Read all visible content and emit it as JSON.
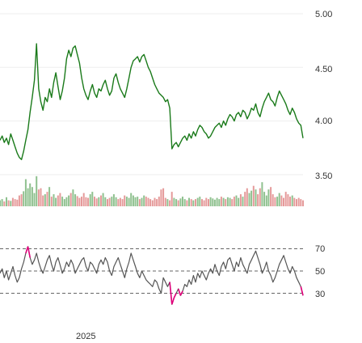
{
  "colors": {
    "price_line": "#1a7a1a",
    "volume_up": "#8fc18f",
    "volume_down": "#e59a9a",
    "rsi_line": "#555555",
    "rsi_overbought": "#e0007a",
    "rsi_oversold": "#e0007a",
    "grid": "#eeeeee",
    "guide": "#666666"
  },
  "chart_data": [
    {
      "type": "line",
      "panel": "price",
      "y_ticks": [
        "5.00",
        "4.50",
        "4.00",
        "3.50"
      ],
      "ylim": [
        3.25,
        5.0
      ],
      "x_tick_labels": [
        "2025"
      ],
      "series": [
        {
          "values": [
            3.82,
            3.86,
            3.8,
            3.84,
            3.78,
            3.88,
            3.82,
            3.76,
            3.7,
            3.66,
            3.64,
            3.72,
            3.82,
            3.92,
            4.08,
            4.22,
            4.38,
            4.72,
            4.3,
            4.18,
            4.1,
            4.22,
            4.18,
            4.3,
            4.22,
            4.36,
            4.45,
            4.32,
            4.2,
            4.28,
            4.4,
            4.58,
            4.66,
            4.6,
            4.68,
            4.7,
            4.62,
            4.54,
            4.4,
            4.3,
            4.24,
            4.2,
            4.28,
            4.34,
            4.26,
            4.22,
            4.3,
            4.28,
            4.34,
            4.38,
            4.3,
            4.24,
            4.28,
            4.4,
            4.44,
            4.36,
            4.3,
            4.26,
            4.22,
            4.3,
            4.4,
            4.5,
            4.56,
            4.58,
            4.6,
            4.55,
            4.6,
            4.62,
            4.56,
            4.5,
            4.46,
            4.4,
            4.34,
            4.3,
            4.26,
            4.24,
            4.22,
            4.18,
            4.2,
            4.12,
            3.74,
            3.78,
            3.8,
            3.76,
            3.8,
            3.84,
            3.86,
            3.82,
            3.88,
            3.84,
            3.9,
            3.86,
            3.92,
            3.96,
            3.94,
            3.9,
            3.88,
            3.84,
            3.86,
            3.9,
            3.94,
            3.96,
            3.98,
            3.94,
            4.0,
            3.96,
            4.02,
            4.06,
            4.04,
            4.0,
            4.06,
            4.08,
            4.04,
            4.1,
            4.08,
            4.02,
            4.06,
            4.12,
            4.1,
            4.16,
            4.08,
            4.04,
            4.12,
            4.18,
            4.22,
            4.26,
            4.2,
            4.18,
            4.14,
            4.22,
            4.28,
            4.24,
            4.2,
            4.16,
            4.1,
            4.06,
            4.12,
            4.08,
            4.02,
            3.98,
            3.96,
            3.84
          ]
        }
      ]
    },
    {
      "type": "bar",
      "panel": "volume",
      "series": [
        {
          "name": "volume",
          "values": [
            0.1,
            0.12,
            0.08,
            0.15,
            0.1,
            0.09,
            0.14,
            0.12,
            0.11,
            0.18,
            0.2,
            0.25,
            0.45,
            0.3,
            0.38,
            0.32,
            0.22,
            0.5,
            0.28,
            0.3,
            0.18,
            0.2,
            0.24,
            0.32,
            0.16,
            0.2,
            0.14,
            0.18,
            0.22,
            0.16,
            0.12,
            0.15,
            0.18,
            0.22,
            0.28,
            0.2,
            0.17,
            0.14,
            0.16,
            0.22,
            0.15,
            0.14,
            0.2,
            0.24,
            0.16,
            0.13,
            0.15,
            0.18,
            0.22,
            0.15,
            0.12,
            0.14,
            0.16,
            0.2,
            0.15,
            0.12,
            0.14,
            0.12,
            0.18,
            0.16,
            0.14,
            0.22,
            0.18,
            0.15,
            0.16,
            0.12,
            0.14,
            0.18,
            0.16,
            0.14,
            0.12,
            0.1,
            0.14,
            0.12,
            0.16,
            0.28,
            0.3,
            0.14,
            0.12,
            0.1,
            0.24,
            0.14,
            0.12,
            0.1,
            0.13,
            0.16,
            0.12,
            0.1,
            0.14,
            0.12,
            0.1,
            0.12,
            0.14,
            0.16,
            0.12,
            0.1,
            0.14,
            0.12,
            0.15,
            0.13,
            0.11,
            0.14,
            0.12,
            0.16,
            0.14,
            0.12,
            0.15,
            0.14,
            0.12,
            0.16,
            0.18,
            0.14,
            0.2,
            0.16,
            0.24,
            0.3,
            0.22,
            0.26,
            0.34,
            0.28,
            0.2,
            0.3,
            0.4,
            0.24,
            0.18,
            0.28,
            0.32,
            0.2,
            0.15,
            0.16,
            0.22,
            0.18,
            0.14,
            0.24,
            0.2,
            0.16,
            0.18,
            0.14,
            0.12,
            0.14,
            0.12,
            0.1
          ]
        }
      ]
    },
    {
      "type": "line",
      "panel": "rsi",
      "y_ticks": [
        "70",
        "50",
        "30"
      ],
      "ylim": [
        10,
        90
      ],
      "guides": [
        70,
        50,
        30
      ],
      "series": [
        {
          "values": [
            48,
            52,
            44,
            50,
            42,
            48,
            54,
            46,
            40,
            44,
            52,
            58,
            66,
            72,
            62,
            56,
            60,
            66,
            58,
            52,
            48,
            54,
            60,
            64,
            56,
            50,
            58,
            62,
            55,
            48,
            52,
            58,
            54,
            60,
            56,
            48,
            52,
            56,
            60,
            62,
            54,
            50,
            58,
            56,
            52,
            48,
            56,
            60,
            56,
            62,
            58,
            50,
            46,
            54,
            58,
            62,
            56,
            50,
            44,
            52,
            58,
            66,
            60,
            54,
            48,
            44,
            50,
            46,
            42,
            40,
            38,
            36,
            42,
            40,
            34,
            30,
            44,
            40,
            36,
            40,
            20,
            26,
            30,
            34,
            28,
            32,
            38,
            36,
            42,
            38,
            46,
            40,
            48,
            44,
            50,
            46,
            42,
            48,
            52,
            48,
            56,
            50,
            46,
            54,
            58,
            52,
            60,
            62,
            56,
            50,
            58,
            54,
            62,
            56,
            52,
            48,
            56,
            60,
            64,
            68,
            62,
            56,
            48,
            52,
            58,
            50,
            46,
            40,
            44,
            50,
            56,
            60,
            64,
            58,
            52,
            48,
            54,
            50,
            44,
            40,
            36,
            28
          ]
        }
      ]
    }
  ]
}
